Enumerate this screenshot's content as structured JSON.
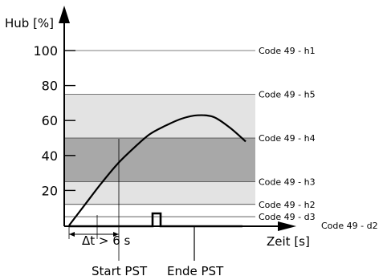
{
  "chart_data": {
    "type": "line",
    "ylabel": "Hub [%]",
    "xlabel": "Zeit [s]",
    "yticks": [
      20,
      40,
      60,
      80,
      100
    ],
    "ylim": [
      0,
      110
    ],
    "colors": {
      "band_light": "#e3e3e3",
      "band_dark": "#a8a8a8",
      "curve": "#000000"
    },
    "levels": [
      {
        "label": "Code 49 - h1",
        "value": 100
      },
      {
        "label": "Code 49 - h5",
        "value": 75
      },
      {
        "label": "Code 49 - h4",
        "value": 50
      },
      {
        "label": "Code 49 - h3",
        "value": 25
      },
      {
        "label": "Code 49 - h2",
        "value": 12
      },
      {
        "label": "Code 49 - d3",
        "value": 5
      },
      {
        "label": "Code 49 - d2",
        "value": 0
      }
    ],
    "bands": [
      {
        "from": 12,
        "to": 75,
        "shade": "light"
      },
      {
        "from": 25,
        "to": 50,
        "shade": "dark"
      }
    ],
    "curve": [
      {
        "t": 0.0,
        "hub": 0
      },
      {
        "t": 0.1,
        "hub": 12
      },
      {
        "t": 0.2,
        "hub": 24
      },
      {
        "t": 0.3,
        "hub": 35
      },
      {
        "t": 0.4,
        "hub": 44
      },
      {
        "t": 0.5,
        "hub": 52
      },
      {
        "t": 0.6,
        "hub": 57
      },
      {
        "t": 0.7,
        "hub": 61
      },
      {
        "t": 0.8,
        "hub": 63
      },
      {
        "t": 0.9,
        "hub": 62
      },
      {
        "t": 1.0,
        "hub": 56
      },
      {
        "t": 1.1,
        "hub": 48
      }
    ],
    "annotations": {
      "delta_t": "Δt > 6 s",
      "start": "Start PST",
      "end": "Ende PST"
    }
  }
}
